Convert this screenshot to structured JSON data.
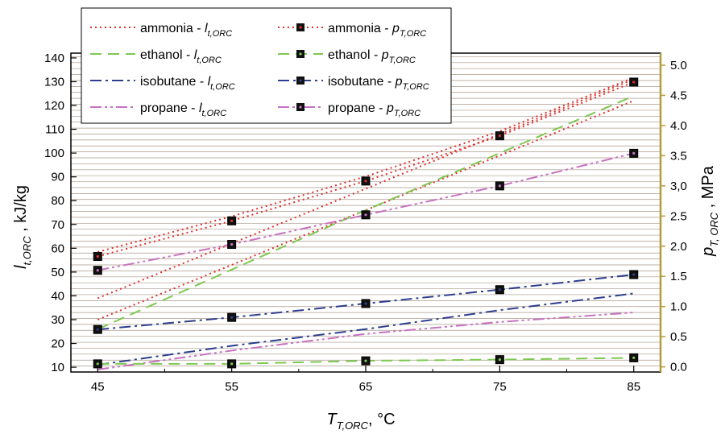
{
  "chart_data": {
    "type": "line",
    "x": [
      45,
      55,
      65,
      75,
      85
    ],
    "xlim": [
      43,
      87
    ],
    "ylim": [
      8,
      142
    ],
    "y2lim": [
      -0.085,
      5.2
    ],
    "x_ticks": [
      45,
      55,
      65,
      75,
      85
    ],
    "y_ticks": [
      10,
      20,
      30,
      40,
      50,
      60,
      70,
      80,
      90,
      100,
      110,
      120,
      130,
      140
    ],
    "y2_ticks": [
      0.0,
      0.5,
      1.0,
      1.5,
      2.0,
      2.5,
      3.0,
      3.5,
      4.0,
      4.5,
      5.0
    ],
    "y2_tick_labels": [
      "0.0",
      "0.5",
      "1.0",
      "1.5",
      "2.0",
      "2.5",
      "3,0",
      "3.5",
      "4.0",
      "4.5",
      "5.0"
    ],
    "xlabel": {
      "main": "T",
      "sub": "T,ORC",
      "suffix": ", °C"
    },
    "ylabel": {
      "main": "l",
      "sub": "t,ORC",
      "suffix": " , kJ/kg"
    },
    "y2label": {
      "main": "p",
      "sub": "T, ORC",
      "suffix": " , MPa"
    },
    "grid": true,
    "legend_position": "top-left",
    "series": [
      {
        "name": "ammonia - ",
        "sym": "l",
        "sub": "t,ORC",
        "axis": "left",
        "style": "dot",
        "color": "#e0302c",
        "values": [
          28.0,
          51.0,
          74.0,
          97.0,
          120.0
        ],
        "band": [
          11,
          2
        ]
      },
      {
        "name": "ethanol - ",
        "sym": "l",
        "sub": "t,ORC",
        "axis": "left",
        "style": "dash",
        "color": "#7ec850",
        "values": [
          26.0,
          51.0,
          76.0,
          100.0,
          124.0
        ]
      },
      {
        "name": "isobutane - ",
        "sym": "l",
        "sub": "t,ORC",
        "axis": "left",
        "style": "dashdot",
        "color": "#2d3e8e",
        "values": [
          11.0,
          19.0,
          26.0,
          34.0,
          41.0
        ]
      },
      {
        "name": "propane - ",
        "sym": "l",
        "sub": "t,ORC",
        "axis": "left",
        "style": "dashdotdot",
        "color": "#c872c0",
        "values": [
          9.0,
          17.0,
          24.0,
          29.0,
          33.0
        ]
      },
      {
        "name": "ammonia - ",
        "sym": "p",
        "sub": "T,ORC",
        "axis": "right",
        "style": "dot",
        "color": "#e0302c",
        "markers": true,
        "values": [
          1.83,
          2.42,
          3.08,
          3.83,
          4.72
        ],
        "band": [
          0.0,
          0.075
        ]
      },
      {
        "name": "ethanol - ",
        "sym": "p",
        "sub": "T,ORC",
        "axis": "right",
        "style": "dash",
        "color": "#7ec850",
        "markers": true,
        "values": [
          0.05,
          0.05,
          0.1,
          0.12,
          0.15
        ]
      },
      {
        "name": "isobutane - ",
        "sym": "p",
        "sub": "T,ORC",
        "axis": "right",
        "style": "dashdot",
        "color": "#2d3e8e",
        "markers": true,
        "values": [
          0.62,
          0.82,
          1.05,
          1.28,
          1.53
        ]
      },
      {
        "name": "propane - ",
        "sym": "p",
        "sub": "T,ORC",
        "axis": "right",
        "style": "dashdotdot",
        "color": "#c872c0",
        "markers": true,
        "values": [
          1.6,
          2.03,
          2.52,
          3.0,
          3.54
        ]
      }
    ]
  }
}
